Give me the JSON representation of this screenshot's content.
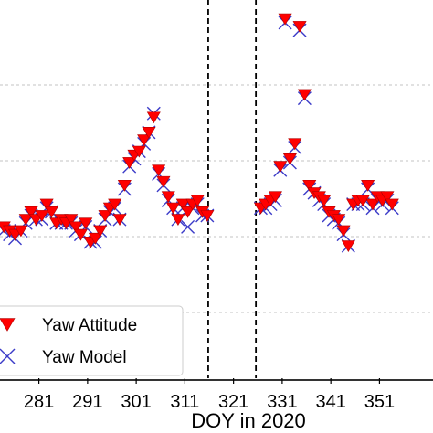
{
  "chart_data": {
    "type": "scatter",
    "xlabel": "DOY in 2020",
    "xlim": [
      273,
      362
    ],
    "ylim": [
      0,
      1
    ],
    "x_ticks": [
      "281",
      "291",
      "301",
      "311",
      "321",
      "331",
      "341",
      "351"
    ],
    "x_tick_values": [
      281,
      291,
      301,
      311,
      321,
      331,
      341,
      351
    ],
    "grid": "horizontal-dashed",
    "vlines": [
      315.8,
      325.6
    ],
    "legend": {
      "position": "bottom-left"
    },
    "series": [
      {
        "name": "Yaw Attitude",
        "marker": "down-triangle",
        "color": "#ff0000",
        "points": [
          [
            273.8,
            0.4
          ],
          [
            275.0,
            0.39
          ],
          [
            276.1,
            0.38
          ],
          [
            277.3,
            0.39
          ],
          [
            278.3,
            0.42
          ],
          [
            279.4,
            0.44
          ],
          [
            280.4,
            0.42
          ],
          [
            281.6,
            0.43
          ],
          [
            282.6,
            0.46
          ],
          [
            283.6,
            0.44
          ],
          [
            284.6,
            0.41
          ],
          [
            285.6,
            0.42
          ],
          [
            286.6,
            0.41
          ],
          [
            287.6,
            0.42
          ],
          [
            288.6,
            0.4
          ],
          [
            289.6,
            0.38
          ],
          [
            290.6,
            0.41
          ],
          [
            291.6,
            0.36
          ],
          [
            292.6,
            0.37
          ],
          [
            293.6,
            0.39
          ],
          [
            294.6,
            0.43
          ],
          [
            295.6,
            0.45
          ],
          [
            296.6,
            0.46
          ],
          [
            297.6,
            0.42
          ],
          [
            298.6,
            0.51
          ],
          [
            299.6,
            0.57
          ],
          [
            300.6,
            0.59
          ],
          [
            301.6,
            0.6
          ],
          [
            302.6,
            0.63
          ],
          [
            303.6,
            0.65
          ],
          [
            304.6,
            0.69
          ],
          [
            305.6,
            0.55
          ],
          [
            306.6,
            0.52
          ],
          [
            307.6,
            0.48
          ],
          [
            308.6,
            0.45
          ],
          [
            309.6,
            0.42
          ],
          [
            310.6,
            0.46
          ],
          [
            311.6,
            0.44
          ],
          [
            312.6,
            0.46
          ],
          [
            313.6,
            0.47
          ],
          [
            314.6,
            0.44
          ],
          [
            315.6,
            0.43
          ],
          [
            326.6,
            0.45
          ],
          [
            327.6,
            0.46
          ],
          [
            328.6,
            0.47
          ],
          [
            329.6,
            0.48
          ],
          [
            330.6,
            0.56
          ],
          [
            331.6,
            0.95
          ],
          [
            332.6,
            0.58
          ],
          [
            333.6,
            0.62
          ],
          [
            334.6,
            0.93
          ],
          [
            335.6,
            0.75
          ],
          [
            336.6,
            0.51
          ],
          [
            337.6,
            0.49
          ],
          [
            338.6,
            0.48
          ],
          [
            339.6,
            0.47
          ],
          [
            340.6,
            0.44
          ],
          [
            341.6,
            0.43
          ],
          [
            342.6,
            0.42
          ],
          [
            343.6,
            0.39
          ],
          [
            344.6,
            0.35
          ],
          [
            345.6,
            0.46
          ],
          [
            346.6,
            0.47
          ],
          [
            347.6,
            0.47
          ],
          [
            348.6,
            0.51
          ],
          [
            349.6,
            0.46
          ],
          [
            350.6,
            0.48
          ],
          [
            351.6,
            0.47
          ],
          [
            352.6,
            0.48
          ],
          [
            353.6,
            0.46
          ]
        ]
      },
      {
        "name": "Yaw Model",
        "marker": "x",
        "color": "#3b3bc8",
        "points": [
          [
            273.8,
            0.39
          ],
          [
            275.0,
            0.38
          ],
          [
            276.1,
            0.37
          ],
          [
            277.3,
            0.39
          ],
          [
            278.3,
            0.41
          ],
          [
            279.4,
            0.43
          ],
          [
            280.4,
            0.42
          ],
          [
            281.6,
            0.42
          ],
          [
            282.6,
            0.45
          ],
          [
            283.6,
            0.44
          ],
          [
            284.6,
            0.41
          ],
          [
            285.6,
            0.41
          ],
          [
            286.6,
            0.41
          ],
          [
            287.6,
            0.41
          ],
          [
            288.6,
            0.39
          ],
          [
            289.6,
            0.38
          ],
          [
            290.6,
            0.4
          ],
          [
            291.6,
            0.36
          ],
          [
            292.6,
            0.36
          ],
          [
            293.6,
            0.39
          ],
          [
            294.6,
            0.42
          ],
          [
            295.6,
            0.44
          ],
          [
            296.6,
            0.45
          ],
          [
            297.6,
            0.42
          ],
          [
            298.6,
            0.5
          ],
          [
            299.6,
            0.56
          ],
          [
            300.6,
            0.58
          ],
          [
            301.6,
            0.6
          ],
          [
            302.6,
            0.62
          ],
          [
            303.6,
            0.65
          ],
          [
            304.6,
            0.7
          ],
          [
            305.6,
            0.54
          ],
          [
            306.6,
            0.51
          ],
          [
            307.6,
            0.47
          ],
          [
            308.6,
            0.45
          ],
          [
            309.6,
            0.42
          ],
          [
            310.6,
            0.45
          ],
          [
            311.6,
            0.4
          ],
          [
            312.6,
            0.45
          ],
          [
            313.6,
            0.46
          ],
          [
            314.6,
            0.43
          ],
          [
            315.6,
            0.43
          ],
          [
            326.6,
            0.45
          ],
          [
            327.6,
            0.45
          ],
          [
            328.6,
            0.46
          ],
          [
            329.6,
            0.47
          ],
          [
            330.6,
            0.55
          ],
          [
            331.6,
            0.94
          ],
          [
            332.6,
            0.57
          ],
          [
            333.6,
            0.61
          ],
          [
            334.6,
            0.92
          ],
          [
            335.6,
            0.74
          ],
          [
            336.6,
            0.5
          ],
          [
            337.6,
            0.49
          ],
          [
            338.6,
            0.47
          ],
          [
            339.6,
            0.46
          ],
          [
            340.6,
            0.43
          ],
          [
            341.6,
            0.42
          ],
          [
            342.6,
            0.41
          ],
          [
            343.6,
            0.38
          ],
          [
            344.6,
            0.35
          ],
          [
            345.6,
            0.46
          ],
          [
            346.6,
            0.46
          ],
          [
            347.6,
            0.46
          ],
          [
            348.6,
            0.5
          ],
          [
            349.6,
            0.45
          ],
          [
            350.6,
            0.47
          ],
          [
            351.6,
            0.46
          ],
          [
            352.6,
            0.47
          ],
          [
            353.6,
            0.45
          ]
        ]
      }
    ]
  }
}
